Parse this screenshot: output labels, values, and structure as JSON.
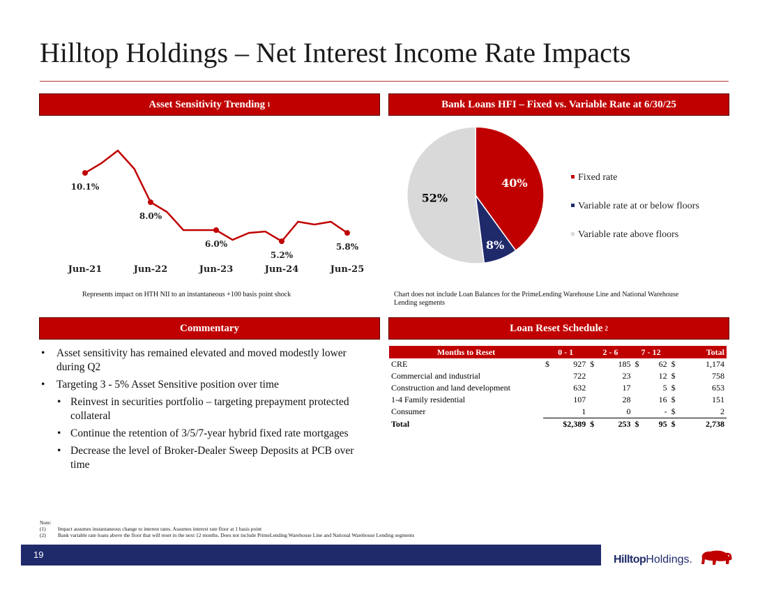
{
  "title": "Hilltop Holdings – Net Interest Income Rate Impacts",
  "banners": {
    "asset_sensitivity": "Asset Sensitivity Trending",
    "asset_sensitivity_note": "1",
    "bank_loans": "Bank Loans HFI – Fixed vs. Variable Rate at 6/30/25",
    "commentary": "Commentary",
    "loan_reset": "Loan Reset Schedule",
    "loan_reset_note": "2"
  },
  "captions": {
    "line_chart": "Represents impact on HTH NII to an instantaneous +100 basis point shock",
    "pie_chart": "Chart does not include Loan Balances for the PrimeLending Warehouse Line and National Warehouse Lending segments"
  },
  "chart_data": [
    {
      "type": "line",
      "title": "Asset Sensitivity Trending",
      "x": [
        0,
        1,
        2,
        3,
        4,
        5,
        6,
        7,
        8,
        9,
        10,
        11,
        12,
        13,
        14,
        15,
        16
      ],
      "values": [
        10.1,
        10.8,
        11.7,
        10.4,
        8.0,
        7.3,
        6.0,
        6.0,
        6.0,
        5.3,
        5.8,
        5.9,
        5.2,
        6.6,
        6.4,
        6.6,
        5.8
      ],
      "labeled_points": [
        {
          "index": 0,
          "label": "10.1%"
        },
        {
          "index": 4,
          "label": "8.0%"
        },
        {
          "index": 8,
          "label": "6.0%"
        },
        {
          "index": 12,
          "label": "5.2%"
        },
        {
          "index": 16,
          "label": "5.8%"
        }
      ],
      "tick_labels": [
        {
          "index": 0,
          "label": "Jun-21"
        },
        {
          "index": 4,
          "label": "Jun-22"
        },
        {
          "index": 8,
          "label": "Jun-23"
        },
        {
          "index": 12,
          "label": "Jun-24"
        },
        {
          "index": 16,
          "label": "Jun-25"
        }
      ],
      "ylim": [
        4.5,
        12.5
      ],
      "color": "#c00000"
    },
    {
      "type": "pie",
      "title": "Bank Loans HFI – Fixed vs. Variable Rate at 6/30/25",
      "slices": [
        {
          "name": "Fixed rate",
          "value": 40,
          "label": "40%",
          "color": "#c00000",
          "label_color": "#ffffff"
        },
        {
          "name": "Variable rate at or below floors",
          "value": 8,
          "label": "8%",
          "color": "#1f2a6b",
          "label_color": "#ffffff"
        },
        {
          "name": "Variable rate above floors",
          "value": 52,
          "label": "52%",
          "color": "#d9d9d9",
          "label_color": "#000000"
        }
      ],
      "legend_position": "right"
    }
  ],
  "commentary": [
    {
      "level": 1,
      "text": "Asset sensitivity has remained elevated and moved modestly lower during Q2"
    },
    {
      "level": 1,
      "text": "Targeting 3 - 5% Asset Sensitive position over time"
    },
    {
      "level": 2,
      "text": "Reinvest in securities portfolio – targeting prepayment protected collateral"
    },
    {
      "level": 2,
      "text": "Continue the retention of 3/5/7-year hybrid fixed rate mortgages"
    },
    {
      "level": 2,
      "text": "Decrease the level of Broker-Dealer Sweep Deposits at PCB over time"
    }
  ],
  "reset_table": {
    "headers": [
      "Months to Reset",
      "0 - 1",
      "2 - 6",
      "7 - 12",
      "Total"
    ],
    "rows": [
      {
        "label": "CRE",
        "c1": "927",
        "c1s": "$",
        "c2": "185",
        "c2s": "$",
        "c3": "62",
        "c3s": "$",
        "tot": "1,174",
        "tots": "$"
      },
      {
        "label": "Commercial and industrial",
        "c1": "722",
        "c1s": "",
        "c2": "23",
        "c2s": "",
        "c3": "12",
        "c3s": "",
        "tot": "758",
        "tots": "$"
      },
      {
        "label": "Construction and land development",
        "c1": "632",
        "c1s": "",
        "c2": "17",
        "c2s": "",
        "c3": "5",
        "c3s": "",
        "tot": "653",
        "tots": "$"
      },
      {
        "label": "1-4 Family residential",
        "c1": "107",
        "c1s": "",
        "c2": "28",
        "c2s": "",
        "c3": "16",
        "c3s": "",
        "tot": "151",
        "tots": "$"
      },
      {
        "label": "Consumer",
        "c1": "1",
        "c1s": "",
        "c2": "0",
        "c2s": "",
        "c3": "-",
        "c3s": "",
        "tot": "2",
        "tots": "$"
      }
    ],
    "total": {
      "label": "Total",
      "c1": "$2,389",
      "c2": "253",
      "c2s": "$",
      "c3": "95",
      "c3s": "$",
      "tot": "2,738",
      "tots": "$"
    }
  },
  "notes": {
    "heading": "Note:",
    "n1_num": "(1)",
    "n1": "Impact assumes instantaneous change to interest rates. Assumes interest rate floor at 1 basis point",
    "n2_num": "(2)",
    "n2": "Bank variable rate loans above the floor that will reset in the next 12 months. Does not include PrimeLending Warehouse Line and National Warehouse Lending segments"
  },
  "footer": {
    "page_number": "19",
    "logo_strong": "Hilltop",
    "logo_rest": "Holdings."
  }
}
